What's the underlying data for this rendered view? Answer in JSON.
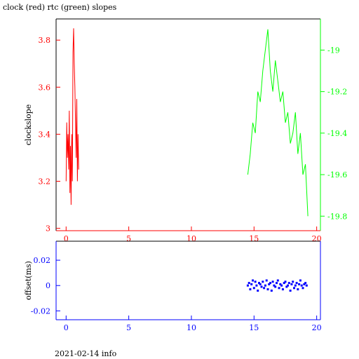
{
  "title": "clock (red) rtc (green) slopes",
  "footer": "2021-02-14 info",
  "colors": {
    "clock": "#ff0000",
    "rtc": "#00ff00",
    "offset": "#0000ff",
    "frame": "#000000"
  },
  "chart_data": [
    {
      "type": "line",
      "title": "clock (red) rtc (green) slopes",
      "xlabel": "",
      "ylabel": "clockslope",
      "xlim": [
        -0.8,
        20.3
      ],
      "xticks": [
        0,
        5,
        10,
        15,
        20
      ],
      "ylim": [
        2.99,
        3.89
      ],
      "yticks": [
        3,
        3.2,
        3.4,
        3.6,
        3.8
      ],
      "y2lim": [
        -19.87,
        -18.85
      ],
      "y2ticks": [
        -19,
        -19.2,
        -19.4,
        -19.6,
        -19.8
      ],
      "series": [
        {
          "name": "clock",
          "axis": "left",
          "x": [
            0.0,
            0.05,
            0.1,
            0.15,
            0.2,
            0.25,
            0.3,
            0.35,
            0.4,
            0.45,
            0.5,
            0.55,
            0.6,
            0.65,
            0.7,
            0.75,
            0.8,
            0.85,
            0.9,
            0.95,
            1.0
          ],
          "y": [
            3.2,
            3.45,
            3.3,
            3.4,
            3.25,
            3.5,
            3.15,
            3.35,
            3.1,
            3.4,
            3.2,
            3.75,
            3.85,
            3.7,
            3.6,
            3.45,
            3.3,
            3.55,
            3.2,
            3.4,
            3.25
          ]
        },
        {
          "name": "rtc",
          "axis": "right",
          "x": [
            14.5,
            14.7,
            14.9,
            15.1,
            15.3,
            15.5,
            15.7,
            15.9,
            16.1,
            16.3,
            16.5,
            16.7,
            16.9,
            17.1,
            17.3,
            17.5,
            17.7,
            17.9,
            18.1,
            18.3,
            18.5,
            18.7,
            18.9,
            19.1,
            19.3
          ],
          "y": [
            -19.6,
            -19.5,
            -19.35,
            -19.4,
            -19.2,
            -19.25,
            -19.1,
            -19.0,
            -18.9,
            -19.1,
            -19.2,
            -19.05,
            -19.15,
            -19.25,
            -19.2,
            -19.35,
            -19.3,
            -19.45,
            -19.4,
            -19.3,
            -19.5,
            -19.4,
            -19.6,
            -19.55,
            -19.8
          ]
        }
      ]
    },
    {
      "type": "scatter",
      "xlabel": "",
      "ylabel": "offset(ms)",
      "xlim": [
        -0.8,
        20.3
      ],
      "xticks": [
        0,
        5,
        10,
        15,
        20
      ],
      "ylim": [
        -0.027,
        0.035
      ],
      "yticks": [
        0.02,
        0,
        -0.02
      ],
      "ytick_labels": [
        "0.02",
        "0",
        "-0.02"
      ],
      "series": [
        {
          "name": "offset",
          "x": [
            14.5,
            14.6,
            14.7,
            14.8,
            14.9,
            15.0,
            15.1,
            15.2,
            15.3,
            15.4,
            15.5,
            15.6,
            15.7,
            15.8,
            15.9,
            16.0,
            16.1,
            16.2,
            16.3,
            16.4,
            16.5,
            16.6,
            16.7,
            16.8,
            16.9,
            17.0,
            17.1,
            17.2,
            17.3,
            17.4,
            17.5,
            17.6,
            17.7,
            17.8,
            17.9,
            18.0,
            18.1,
            18.2,
            18.3,
            18.4,
            18.5,
            18.6,
            18.7,
            18.8,
            18.9,
            19.0,
            19.1,
            19.2
          ],
          "y": [
            0.0,
            0.002,
            -0.003,
            0.001,
            0.004,
            -0.002,
            0.003,
            0.0,
            -0.004,
            0.002,
            0.001,
            -0.001,
            0.003,
            -0.002,
            0.0,
            0.004,
            -0.003,
            0.001,
            0.002,
            -0.004,
            0.003,
            0.0,
            -0.001,
            0.002,
            0.004,
            -0.002,
            0.001,
            0.0,
            -0.003,
            0.002,
            0.003,
            -0.001,
            0.0,
            0.002,
            -0.004,
            0.001,
            0.003,
            -0.002,
            0.0,
            0.002,
            -0.003,
            0.001,
            0.004,
            0.0,
            -0.002,
            0.001,
            0.002,
            0.0
          ]
        }
      ]
    }
  ]
}
